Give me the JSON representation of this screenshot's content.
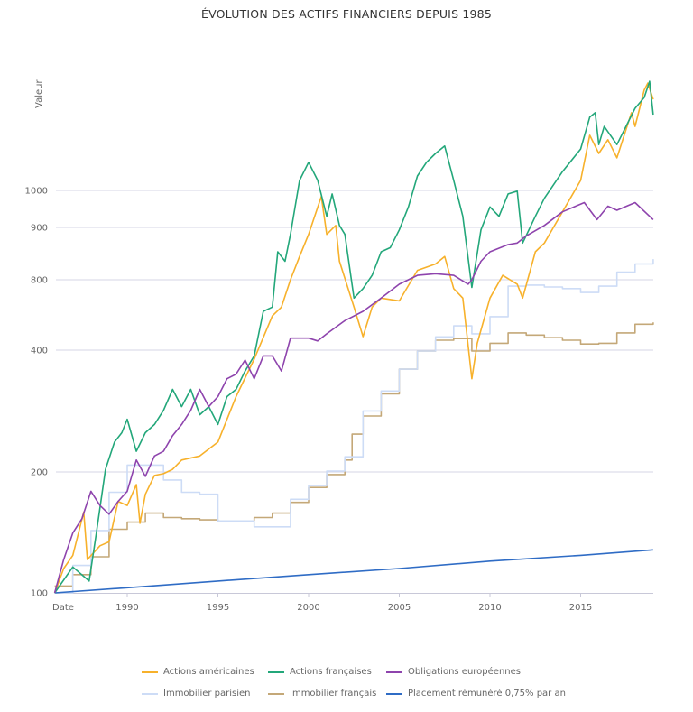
{
  "chart_data": {
    "type": "line",
    "title": "ÉVOLUTION DES ACTIFS FINANCIERS DEPUIS 1985",
    "xlabel": "Date",
    "ylabel": "Valeur",
    "x_ticks": [
      "1990",
      "1995",
      "2000",
      "2005",
      "2010",
      "2015"
    ],
    "y_ticks": [
      100,
      200,
      400,
      800,
      900,
      1000
    ],
    "xlim": [
      1986,
      2019
    ],
    "grid": true,
    "legend_position": "bottom",
    "series": [
      {
        "name": "Actions américaines",
        "color": "#f7b12b",
        "step": false,
        "points": [
          [
            1986,
            100
          ],
          [
            1986.5,
            115
          ],
          [
            1987,
            124
          ],
          [
            1987.6,
            159
          ],
          [
            1987.8,
            121
          ],
          [
            1988.5,
            131
          ],
          [
            1989,
            134
          ],
          [
            1989.5,
            169
          ],
          [
            1990,
            165
          ],
          [
            1990.5,
            186
          ],
          [
            1990.7,
            149
          ],
          [
            1991,
            176
          ],
          [
            1991.5,
            196
          ],
          [
            1992,
            198
          ],
          [
            1992.5,
            203
          ],
          [
            1993,
            214
          ],
          [
            1994,
            219
          ],
          [
            1995,
            237
          ],
          [
            1996,
            307
          ],
          [
            1997,
            380
          ],
          [
            1998,
            560
          ],
          [
            1998.5,
            611
          ],
          [
            1999,
            800
          ],
          [
            1999.5,
            843
          ],
          [
            2000,
            886
          ],
          [
            2000.7,
            983
          ],
          [
            2001,
            886
          ],
          [
            2001.5,
            905
          ],
          [
            2001.7,
            834
          ],
          [
            2002.5,
            611
          ],
          [
            2003,
            457
          ],
          [
            2003.5,
            611
          ],
          [
            2004,
            668
          ],
          [
            2005,
            650
          ],
          [
            2006,
            817
          ],
          [
            2007,
            829
          ],
          [
            2007.5,
            843
          ],
          [
            2008,
            733
          ],
          [
            2008.5,
            668
          ],
          [
            2009,
            340
          ],
          [
            2009.3,
            428
          ],
          [
            2010,
            668
          ],
          [
            2010.7,
            808
          ],
          [
            2011.5,
            766
          ],
          [
            2011.8,
            668
          ],
          [
            2012.5,
            852
          ],
          [
            2013,
            869
          ],
          [
            2014,
            941
          ],
          [
            2015,
            1027
          ],
          [
            2015.5,
            1149
          ],
          [
            2016,
            1100
          ],
          [
            2016.5,
            1137
          ],
          [
            2017,
            1088
          ],
          [
            2017.8,
            1210
          ],
          [
            2018,
            1173
          ],
          [
            2018.5,
            1271
          ],
          [
            2018.7,
            1290
          ],
          [
            2019,
            1246
          ]
        ]
      },
      {
        "name": "Actions françaises",
        "color": "#23a77a",
        "step": false,
        "points": [
          [
            1986,
            100
          ],
          [
            1987,
            116
          ],
          [
            1987.9,
            107
          ],
          [
            1988.3,
            141
          ],
          [
            1988.8,
            203
          ],
          [
            1989.3,
            237
          ],
          [
            1989.7,
            250
          ],
          [
            1990,
            270
          ],
          [
            1990.5,
            225
          ],
          [
            1991,
            250
          ],
          [
            1991.5,
            262
          ],
          [
            1992,
            284
          ],
          [
            1992.5,
            320
          ],
          [
            1993,
            290
          ],
          [
            1993.5,
            320
          ],
          [
            1994,
            277
          ],
          [
            1994.5,
            290
          ],
          [
            1995,
            262
          ],
          [
            1995.5,
            307
          ],
          [
            1996,
            320
          ],
          [
            1996.5,
            355
          ],
          [
            1997,
            387
          ],
          [
            1997.5,
            586
          ],
          [
            1998,
            611
          ],
          [
            1998.3,
            852
          ],
          [
            1998.7,
            834
          ],
          [
            1999,
            886
          ],
          [
            1999.5,
            1027
          ],
          [
            2000,
            1076
          ],
          [
            2000.5,
            1027
          ],
          [
            2001,
            929
          ],
          [
            2001.3,
            990
          ],
          [
            2001.7,
            905
          ],
          [
            2002,
            886
          ],
          [
            2002.5,
            668
          ],
          [
            2003,
            733
          ],
          [
            2003.5,
            808
          ],
          [
            2004,
            852
          ],
          [
            2004.5,
            860
          ],
          [
            2005,
            895
          ],
          [
            2005.5,
            954
          ],
          [
            2006,
            1039
          ],
          [
            2006.5,
            1076
          ],
          [
            2007,
            1100
          ],
          [
            2007.5,
            1120
          ],
          [
            2008,
            1027
          ],
          [
            2008.5,
            929
          ],
          [
            2009,
            742
          ],
          [
            2009.5,
            895
          ],
          [
            2010,
            954
          ],
          [
            2010.5,
            929
          ],
          [
            2011,
            990
          ],
          [
            2011.5,
            998
          ],
          [
            2011.8,
            869
          ],
          [
            2012.5,
            929
          ],
          [
            2013,
            978
          ],
          [
            2014,
            1051
          ],
          [
            2015,
            1112
          ],
          [
            2015.5,
            1198
          ],
          [
            2015.8,
            1210
          ],
          [
            2016,
            1124
          ],
          [
            2016.3,
            1173
          ],
          [
            2017,
            1124
          ],
          [
            2018,
            1222
          ],
          [
            2018.5,
            1251
          ],
          [
            2018.8,
            1295
          ],
          [
            2019,
            1205
          ]
        ]
      },
      {
        "name": "Obligations européennes",
        "color": "#8e44ad",
        "step": false,
        "points": [
          [
            1986,
            100
          ],
          [
            1986.5,
            121
          ],
          [
            1987,
            141
          ],
          [
            1987.5,
            153
          ],
          [
            1988,
            179
          ],
          [
            1988.5,
            165
          ],
          [
            1989,
            157
          ],
          [
            1989.5,
            169
          ],
          [
            1990,
            179
          ],
          [
            1990.5,
            214
          ],
          [
            1991,
            195
          ],
          [
            1991.5,
            219
          ],
          [
            1992,
            225
          ],
          [
            1992.5,
            246
          ],
          [
            1993,
            262
          ],
          [
            1993.5,
            284
          ],
          [
            1994,
            320
          ],
          [
            1994.5,
            290
          ],
          [
            1995,
            307
          ],
          [
            1995.5,
            340
          ],
          [
            1996,
            349
          ],
          [
            1996.5,
            378
          ],
          [
            1997,
            340
          ],
          [
            1997.5,
            387
          ],
          [
            1998,
            387
          ],
          [
            1998.5,
            355
          ],
          [
            1999,
            450
          ],
          [
            2000,
            450
          ],
          [
            2000.5,
            438
          ],
          [
            2001,
            470
          ],
          [
            2002,
            535
          ],
          [
            2003,
            586
          ],
          [
            2004,
            668
          ],
          [
            2005,
            766
          ],
          [
            2006,
            808
          ],
          [
            2007,
            811
          ],
          [
            2008,
            808
          ],
          [
            2008.8,
            766
          ],
          [
            2009,
            800
          ],
          [
            2009.5,
            834
          ],
          [
            2010,
            852
          ],
          [
            2011,
            866
          ],
          [
            2011.5,
            869
          ],
          [
            2012,
            883
          ],
          [
            2013,
            905
          ],
          [
            2014,
            941
          ],
          [
            2015.2,
            966
          ],
          [
            2015.9,
            920
          ],
          [
            2016.5,
            956
          ],
          [
            2017,
            945
          ],
          [
            2018,
            966
          ],
          [
            2019,
            920
          ]
        ]
      },
      {
        "name": "Immobilier parisien",
        "color": "#cddcf6",
        "step": true,
        "points": [
          [
            1986,
            100
          ],
          [
            1987,
            117
          ],
          [
            1988,
            143
          ],
          [
            1989,
            178
          ],
          [
            1990,
            208
          ],
          [
            1991,
            208
          ],
          [
            1992,
            191
          ],
          [
            1993,
            178
          ],
          [
            1994,
            176
          ],
          [
            1995,
            151
          ],
          [
            1996,
            151
          ],
          [
            1997,
            146
          ],
          [
            1998,
            146
          ],
          [
            1999,
            171
          ],
          [
            2000,
            185
          ],
          [
            2001,
            201
          ],
          [
            2002,
            218
          ],
          [
            2003,
            283
          ],
          [
            2004,
            317
          ],
          [
            2005,
            359
          ],
          [
            2006,
            398
          ],
          [
            2007,
            456
          ],
          [
            2008,
            508
          ],
          [
            2009,
            470
          ],
          [
            2010,
            556
          ],
          [
            2011,
            751
          ],
          [
            2012,
            759
          ],
          [
            2013,
            745
          ],
          [
            2014,
            733
          ],
          [
            2015,
            706
          ],
          [
            2016,
            751
          ],
          [
            2017,
            814
          ],
          [
            2018,
            829
          ],
          [
            2019,
            838
          ]
        ]
      },
      {
        "name": "Immobilier français",
        "color": "#c4a878",
        "step": true,
        "points": [
          [
            1986,
            104
          ],
          [
            1987,
            111
          ],
          [
            1988,
            123
          ],
          [
            1989,
            144
          ],
          [
            1990,
            150
          ],
          [
            1991,
            158
          ],
          [
            1992,
            154
          ],
          [
            1993,
            153
          ],
          [
            1994,
            152
          ],
          [
            1995,
            151
          ],
          [
            1996,
            151
          ],
          [
            1997,
            154
          ],
          [
            1998,
            158
          ],
          [
            1999,
            168
          ],
          [
            2000,
            183
          ],
          [
            2001,
            197
          ],
          [
            2002,
            214
          ],
          [
            2002.4,
            248
          ],
          [
            2003,
            275
          ],
          [
            2004,
            312
          ],
          [
            2005,
            359
          ],
          [
            2006,
            398
          ],
          [
            2007,
            441
          ],
          [
            2008,
            448
          ],
          [
            2009,
            398
          ],
          [
            2010,
            428
          ],
          [
            2011,
            474
          ],
          [
            2012,
            464
          ],
          [
            2013,
            452
          ],
          [
            2014,
            441
          ],
          [
            2015,
            425
          ],
          [
            2016,
            428
          ],
          [
            2017,
            474
          ],
          [
            2018,
            516
          ],
          [
            2019,
            526
          ]
        ]
      },
      {
        "name": "Placement rémunéré 0,75% par an",
        "color": "#2f6cc5",
        "step": false,
        "points": [
          [
            1986,
            100
          ],
          [
            1990,
            103
          ],
          [
            1995,
            107
          ],
          [
            2000,
            111
          ],
          [
            2005,
            115
          ],
          [
            2010,
            120
          ],
          [
            2015,
            124
          ],
          [
            2019,
            128
          ]
        ]
      }
    ]
  }
}
